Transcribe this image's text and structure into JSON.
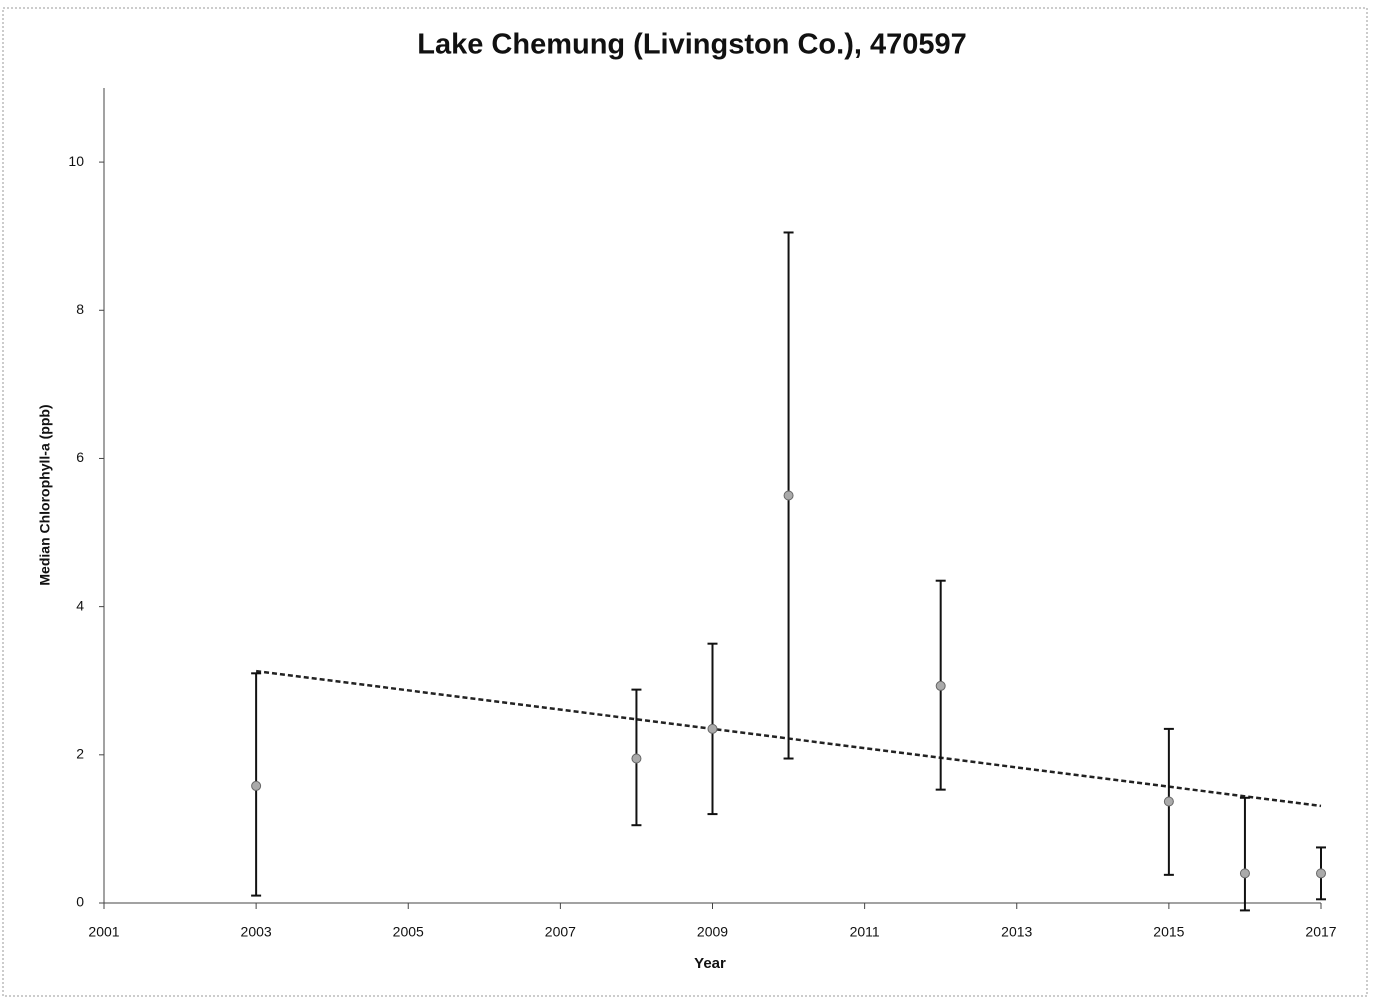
{
  "chart_data": {
    "type": "scatter",
    "title": "Lake Chemung (Livingston Co.), 470597",
    "x_label": "Year",
    "y_label": "Median Chlorophyll-a (ppb)",
    "x": [
      2003,
      2008,
      2009,
      2010,
      2012,
      2015,
      2016,
      2017
    ],
    "values": [
      1.58,
      1.95,
      2.35,
      5.5,
      2.93,
      1.37,
      0.4,
      0.4
    ],
    "lower": [
      0.1,
      1.05,
      1.2,
      1.95,
      1.53,
      0.38,
      -0.1,
      0.05
    ],
    "upper": [
      3.1,
      2.88,
      3.5,
      9.05,
      4.35,
      2.35,
      1.42,
      0.75
    ],
    "color": "#aaaaaa",
    "error_color": "#111111",
    "trendline": {
      "x": [
        2003,
        2017
      ],
      "values": [
        3.13,
        1.31
      ],
      "color": "#222222"
    },
    "xlim": [
      2001,
      2017
    ],
    "xticks": [
      2001,
      2003,
      2005,
      2007,
      2009,
      2011,
      2013,
      2015,
      2017
    ],
    "ylim": [
      0,
      11
    ],
    "yticks": [
      0,
      2,
      4,
      6,
      8,
      10
    ],
    "grid": false
  }
}
